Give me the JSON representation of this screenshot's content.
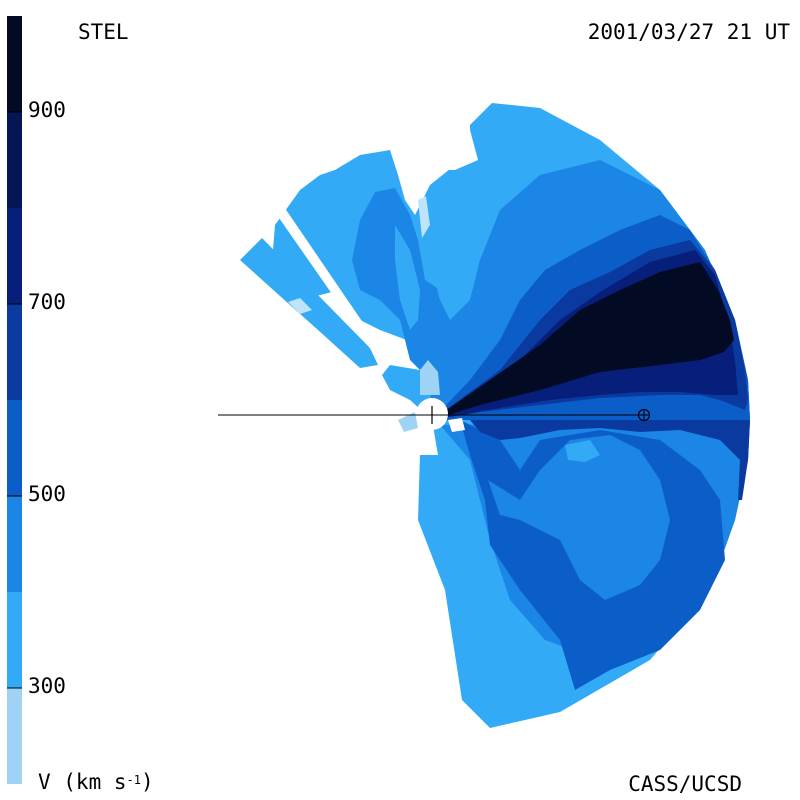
{
  "header": {
    "app_label": "STEL",
    "timestamp": "2001/03/27 21 UT"
  },
  "footer": {
    "unit_prefix": "V (km s",
    "unit_exp": "-1",
    "unit_suffix": ")",
    "credit": "CASS/UCSD"
  },
  "colorbar": {
    "tick_labels": [
      "900",
      "700",
      "500",
      "300"
    ],
    "tick_values": [
      900,
      700,
      500,
      300
    ],
    "range": [
      200,
      1000
    ],
    "bands": [
      {
        "from": 200,
        "to": 300,
        "color": "#9fd3f5"
      },
      {
        "from": 300,
        "to": 400,
        "color": "#33aaf5"
      },
      {
        "from": 400,
        "to": 500,
        "color": "#1b86e6"
      },
      {
        "from": 500,
        "to": 600,
        "color": "#0b5dc8"
      },
      {
        "from": 600,
        "to": 700,
        "color": "#0a3aa0"
      },
      {
        "from": 700,
        "to": 800,
        "color": "#071f7a"
      },
      {
        "from": 800,
        "to": 900,
        "color": "#051555"
      },
      {
        "from": 900,
        "to": 1000,
        "color": "#020a24"
      }
    ]
  },
  "colors": {
    "very_light": "#bfe3fa",
    "light": "#9fd3f5",
    "sky": "#33aaf5",
    "medium": "#1b86e6",
    "dark": "#0b5dc8",
    "navy": "#0a3aa0",
    "deep": "#071f7a",
    "night": "#020a24"
  }
}
